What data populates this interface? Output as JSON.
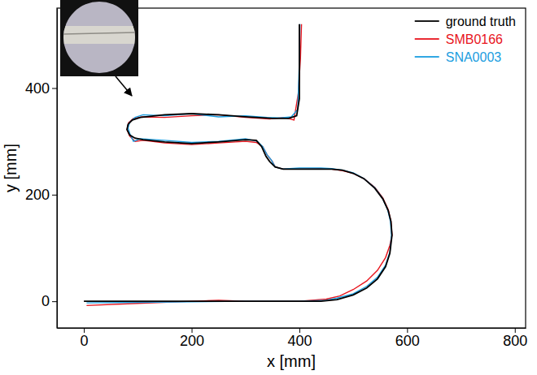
{
  "chart_data": {
    "type": "line",
    "x_label": "x [mm]",
    "y_label": "y [mm]",
    "xlim": [
      -50,
      820
    ],
    "ylim": [
      -50,
      550
    ],
    "xticks": [
      0,
      200,
      400,
      600,
      800
    ],
    "yticks": [
      0,
      200,
      400
    ],
    "legend": "top-right",
    "series": [
      {
        "name": "ground truth",
        "color": "#000000",
        "x": [
          0,
          100,
          200,
          300,
          400,
          440,
          470,
          500,
          525,
          545,
          560,
          568,
          572,
          570,
          565,
          555,
          540,
          520,
          500,
          480,
          460,
          440,
          400,
          370,
          355,
          345,
          338,
          330,
          320,
          300,
          250,
          200,
          150,
          110,
          95,
          85,
          80,
          82,
          90,
          105,
          150,
          200,
          250,
          300,
          350,
          380,
          395,
          400,
          400,
          400
        ],
        "values": [
          0,
          0,
          0,
          0,
          0,
          0,
          3,
          12,
          25,
          42,
          65,
          90,
          124,
          150,
          170,
          192,
          212,
          230,
          240,
          246,
          248,
          248,
          248,
          248,
          252,
          262,
          272,
          290,
          302,
          303,
          299,
          296,
          299,
          303,
          306,
          312,
          322,
          332,
          340,
          345,
          350,
          352,
          350,
          346,
          343,
          343,
          348,
          380,
          450,
          520
        ]
      },
      {
        "name": "SMB0166",
        "color": "#e8141c",
        "x": [
          5,
          100,
          200,
          250,
          300,
          400,
          450,
          475,
          500,
          525,
          545,
          560,
          568,
          572,
          570,
          565,
          555,
          540,
          520,
          500,
          480,
          460,
          440,
          400,
          370,
          355,
          350,
          340,
          332,
          320,
          300,
          250,
          200,
          150,
          110,
          95,
          85,
          80,
          83,
          92,
          108,
          150,
          200,
          250,
          300,
          345,
          372,
          390,
          398,
          402,
          404
        ],
        "values": [
          -8,
          -4,
          0,
          2,
          0,
          0,
          4,
          10,
          22,
          38,
          58,
          82,
          105,
          124,
          150,
          172,
          194,
          214,
          230,
          240,
          245,
          248,
          249,
          248,
          248,
          252,
          262,
          275,
          290,
          298,
          300,
          297,
          294,
          297,
          302,
          300,
          310,
          322,
          335,
          343,
          346,
          345,
          348,
          350,
          345,
          342,
          345,
          340,
          390,
          455,
          520
        ]
      },
      {
        "name": "SNA0003",
        "color": "#1a9de0",
        "x": [
          5,
          100,
          200,
          300,
          400,
          450,
          470,
          500,
          525,
          545,
          560,
          568,
          571,
          569,
          564,
          554,
          540,
          520,
          500,
          480,
          460,
          440,
          400,
          370,
          355,
          348,
          340,
          332,
          322,
          300,
          250,
          200,
          150,
          105,
          92,
          85,
          82,
          85,
          95,
          110,
          150,
          200,
          250,
          300,
          340,
          365,
          385,
          397,
          400,
          401
        ],
        "values": [
          -3,
          -2,
          -1,
          0,
          0,
          2,
          6,
          14,
          28,
          45,
          68,
          92,
          124,
          150,
          172,
          194,
          213,
          230,
          241,
          246,
          249,
          250,
          250,
          248,
          252,
          265,
          275,
          290,
          300,
          305,
          300,
          298,
          302,
          305,
          300,
          315,
          325,
          336,
          345,
          350,
          348,
          352,
          346,
          348,
          345,
          344,
          346,
          360,
          450,
          520
        ]
      }
    ]
  }
}
